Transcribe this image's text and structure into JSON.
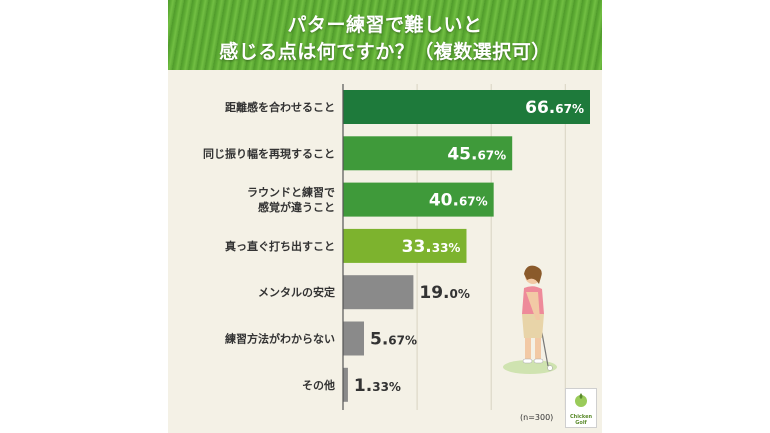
{
  "title_line1": "パター練習で難しいと",
  "title_line2": "感じる点は何ですか？（複数選択可）",
  "sample_note": "(n=300)",
  "logo_text_line1": "Chicken",
  "logo_text_line2": "Golf",
  "colors": {
    "dark_green": "#1e7a3b",
    "mid_green": "#3f9a3a",
    "light_green": "#7db32e",
    "gray": "#8a8a8a",
    "value_text_light": "#ffffff",
    "value_text_dark": "#333333"
  },
  "chart_data": {
    "type": "bar",
    "orientation": "horizontal",
    "title": "パター練習で難しいと感じる点は何ですか？（複数選択可）",
    "xlim": [
      0,
      70
    ],
    "grid": true,
    "categories": [
      [
        "距離感を合わせること"
      ],
      [
        "同じ振り幅を再現すること"
      ],
      [
        "ラウンドと練習で",
        "感覚が違うこと"
      ],
      [
        "真っ直ぐ打ち出すこと"
      ],
      [
        "メンタルの安定"
      ],
      [
        "練習方法がわからない"
      ],
      [
        "その他"
      ]
    ],
    "values": [
      66.67,
      45.67,
      40.67,
      33.33,
      19.0,
      5.67,
      1.33
    ],
    "value_labels": [
      [
        "66.",
        "67%"
      ],
      [
        "45.",
        "67%"
      ],
      [
        "40.",
        "67%"
      ],
      [
        "33.",
        "33%"
      ],
      [
        "19.",
        "0%"
      ],
      [
        "5.",
        "67%"
      ],
      [
        "1.",
        "33%"
      ]
    ],
    "bar_colors": [
      "#1e7a3b",
      "#3f9a3a",
      "#3f9a3a",
      "#7db32e",
      "#8a8a8a",
      "#8a8a8a",
      "#8a8a8a"
    ]
  }
}
